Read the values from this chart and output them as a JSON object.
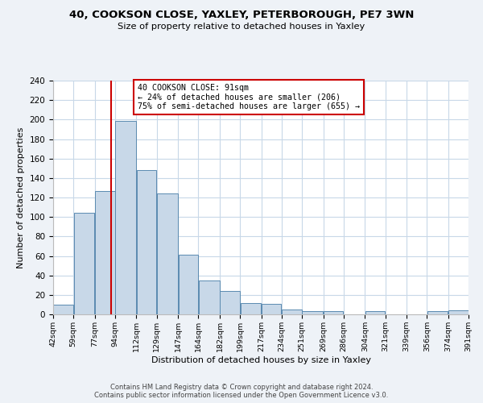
{
  "title": "40, COOKSON CLOSE, YAXLEY, PETERBOROUGH, PE7 3WN",
  "subtitle": "Size of property relative to detached houses in Yaxley",
  "xlabel": "Distribution of detached houses by size in Yaxley",
  "ylabel": "Number of detached properties",
  "bar_edges": [
    42,
    59,
    77,
    94,
    112,
    129,
    147,
    164,
    182,
    199,
    217,
    234,
    251,
    269,
    286,
    304,
    321,
    339,
    356,
    374,
    391
  ],
  "bar_heights": [
    10,
    104,
    127,
    199,
    148,
    124,
    61,
    35,
    24,
    12,
    11,
    5,
    3,
    3,
    0,
    3,
    0,
    0,
    3,
    4
  ],
  "bar_color": "#c8d8e8",
  "bar_edgecolor": "#5a8ab0",
  "vline_x": 91,
  "vline_color": "#cc0000",
  "annotation_line1": "40 COOKSON CLOSE: 91sqm",
  "annotation_line2": "← 24% of detached houses are smaller (206)",
  "annotation_line3": "75% of semi-detached houses are larger (655) →",
  "annotation_box_edgecolor": "#cc0000",
  "ylim": [
    0,
    240
  ],
  "yticks": [
    0,
    20,
    40,
    60,
    80,
    100,
    120,
    140,
    160,
    180,
    200,
    220,
    240
  ],
  "tick_labels": [
    "42sqm",
    "59sqm",
    "77sqm",
    "94sqm",
    "112sqm",
    "129sqm",
    "147sqm",
    "164sqm",
    "182sqm",
    "199sqm",
    "217sqm",
    "234sqm",
    "251sqm",
    "269sqm",
    "286sqm",
    "304sqm",
    "321sqm",
    "339sqm",
    "356sqm",
    "374sqm",
    "391sqm"
  ],
  "footer1": "Contains HM Land Registry data © Crown copyright and database right 2024.",
  "footer2": "Contains public sector information licensed under the Open Government Licence v3.0.",
  "bg_color": "#eef2f7",
  "plot_bg_color": "#ffffff",
  "grid_color": "#c8d8e8"
}
